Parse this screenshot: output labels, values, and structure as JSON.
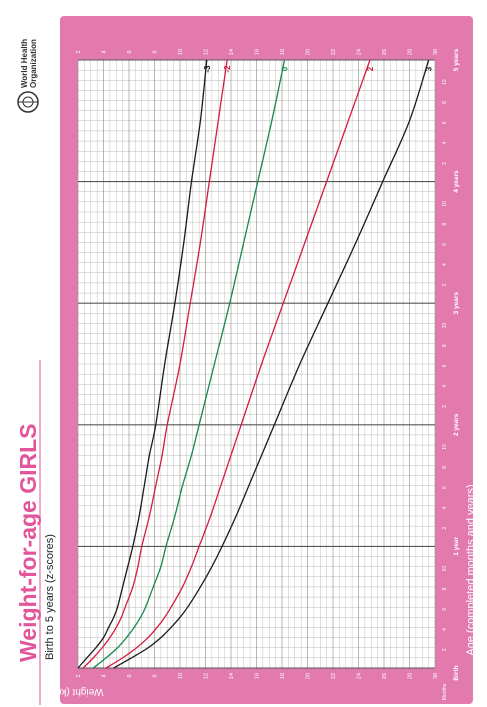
{
  "header": {
    "title": "Weight-for-age GIRLS",
    "subtitle": "Birth to 5 years (z-scores)",
    "org_line1": "World Health",
    "org_line2": "Organization"
  },
  "colors": {
    "page_pink": "#e27aae",
    "title_pink": "#e3559a",
    "grid": "#9a9a9a",
    "line_black": "#1a1a1a",
    "line_red": "#d31b40",
    "line_green": "#16884a"
  },
  "chart_data": {
    "type": "line",
    "title": "Weight-for-age GIRLS",
    "subtitle": "Birth to 5 years (z-scores)",
    "xlabel": "Age (completed months and years)",
    "ylabel": "Weight (kg)",
    "xlim": [
      0,
      60
    ],
    "ylim": [
      2,
      30
    ],
    "grid": true,
    "y_ticks": [
      2,
      4,
      6,
      8,
      10,
      12,
      14,
      16,
      18,
      20,
      22,
      24,
      26,
      28,
      30
    ],
    "x_axis_start_label": "Months",
    "x_year_labels": [
      {
        "month": 0,
        "label": "Birth"
      },
      {
        "month": 12,
        "label": "1 year"
      },
      {
        "month": 24,
        "label": "2 years"
      },
      {
        "month": 36,
        "label": "3 years"
      },
      {
        "month": 48,
        "label": "4 years"
      },
      {
        "month": 60,
        "label": "5 years"
      }
    ],
    "x_month_ticks": [
      2,
      4,
      6,
      8,
      10,
      2,
      4,
      6,
      8,
      10,
      2,
      4,
      6,
      8,
      10,
      2,
      4,
      6,
      8,
      10,
      2,
      4,
      6,
      8,
      10
    ],
    "x": [
      0,
      1,
      2,
      3,
      4,
      5,
      6,
      8,
      10,
      12,
      15,
      18,
      21,
      24,
      30,
      36,
      42,
      48,
      54,
      60
    ],
    "series": [
      {
        "name": "3",
        "color": "black",
        "values": [
          4.8,
          6.2,
          7.5,
          8.5,
          9.3,
          10.0,
          10.6,
          11.6,
          12.5,
          13.3,
          14.4,
          15.4,
          16.4,
          17.4,
          19.4,
          21.6,
          23.8,
          25.9,
          28.0,
          29.5
        ]
      },
      {
        "name": "2",
        "color": "red",
        "values": [
          4.2,
          5.5,
          6.6,
          7.5,
          8.2,
          8.8,
          9.3,
          10.2,
          10.9,
          11.5,
          12.4,
          13.2,
          14.0,
          14.8,
          16.4,
          18.1,
          19.8,
          21.5,
          23.2,
          24.9
        ]
      },
      {
        "name": "0",
        "color": "green",
        "values": [
          3.2,
          4.2,
          5.1,
          5.8,
          6.4,
          6.9,
          7.3,
          7.9,
          8.5,
          8.9,
          9.6,
          10.2,
          10.9,
          11.5,
          12.7,
          13.9,
          15.0,
          16.1,
          17.2,
          18.2
        ]
      },
      {
        "name": "-2",
        "color": "red",
        "values": [
          2.4,
          3.2,
          3.9,
          4.5,
          5.0,
          5.4,
          5.7,
          6.3,
          6.7,
          7.0,
          7.6,
          8.1,
          8.6,
          9.0,
          10.0,
          10.8,
          11.6,
          12.3,
          13.0,
          13.7
        ]
      },
      {
        "name": "-3",
        "color": "black",
        "values": [
          2.0,
          2.7,
          3.4,
          4.0,
          4.4,
          4.8,
          5.1,
          5.5,
          5.9,
          6.3,
          6.8,
          7.2,
          7.6,
          8.1,
          8.8,
          9.6,
          10.3,
          10.9,
          11.6,
          12.1
        ]
      }
    ]
  }
}
